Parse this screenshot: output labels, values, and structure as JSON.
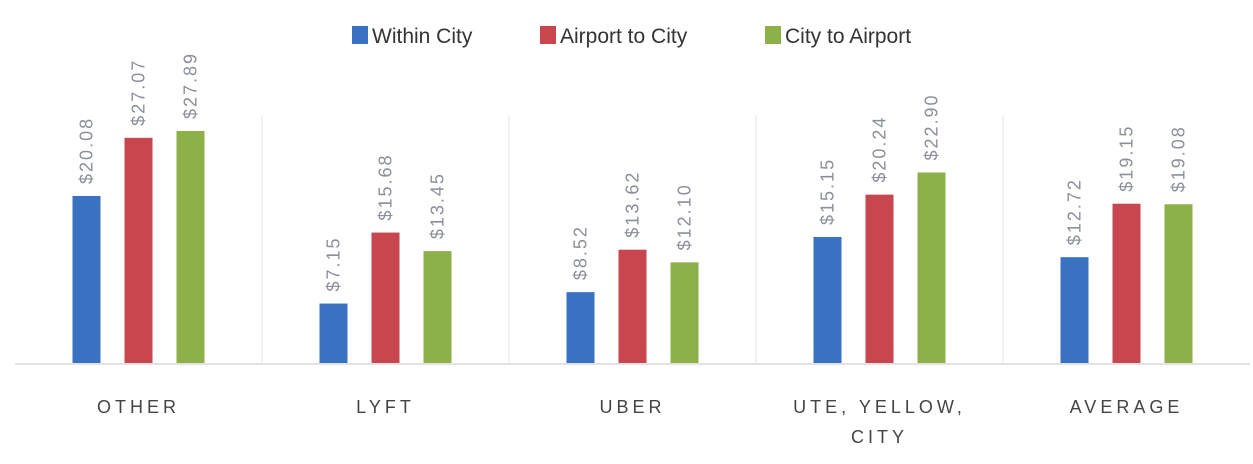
{
  "chart_data": {
    "type": "bar",
    "categories": [
      "OTHER",
      "LYFT",
      "UBER",
      "UTE, YELLOW, CITY",
      "AVERAGE"
    ],
    "series": [
      {
        "name": "Within City",
        "color": "#3a72c2",
        "values": [
          20.08,
          7.15,
          8.52,
          15.15,
          12.72
        ],
        "value_labels": [
          "$20.08",
          "$7.15",
          "$8.52",
          "$15.15",
          "$12.72"
        ]
      },
      {
        "name": "Airport to City",
        "color": "#c8464e",
        "values": [
          27.07,
          15.68,
          13.62,
          20.24,
          19.15
        ],
        "value_labels": [
          "$27.07",
          "$15.68",
          "$13.62",
          "$20.24",
          "$19.15"
        ]
      },
      {
        "name": "City to Airport",
        "color": "#8db049",
        "values": [
          27.89,
          13.45,
          12.1,
          22.9,
          19.08
        ],
        "value_labels": [
          "$27.89",
          "$13.45",
          "$12.10",
          "$22.90",
          "$19.08"
        ]
      }
    ],
    "legend": "top"
  }
}
